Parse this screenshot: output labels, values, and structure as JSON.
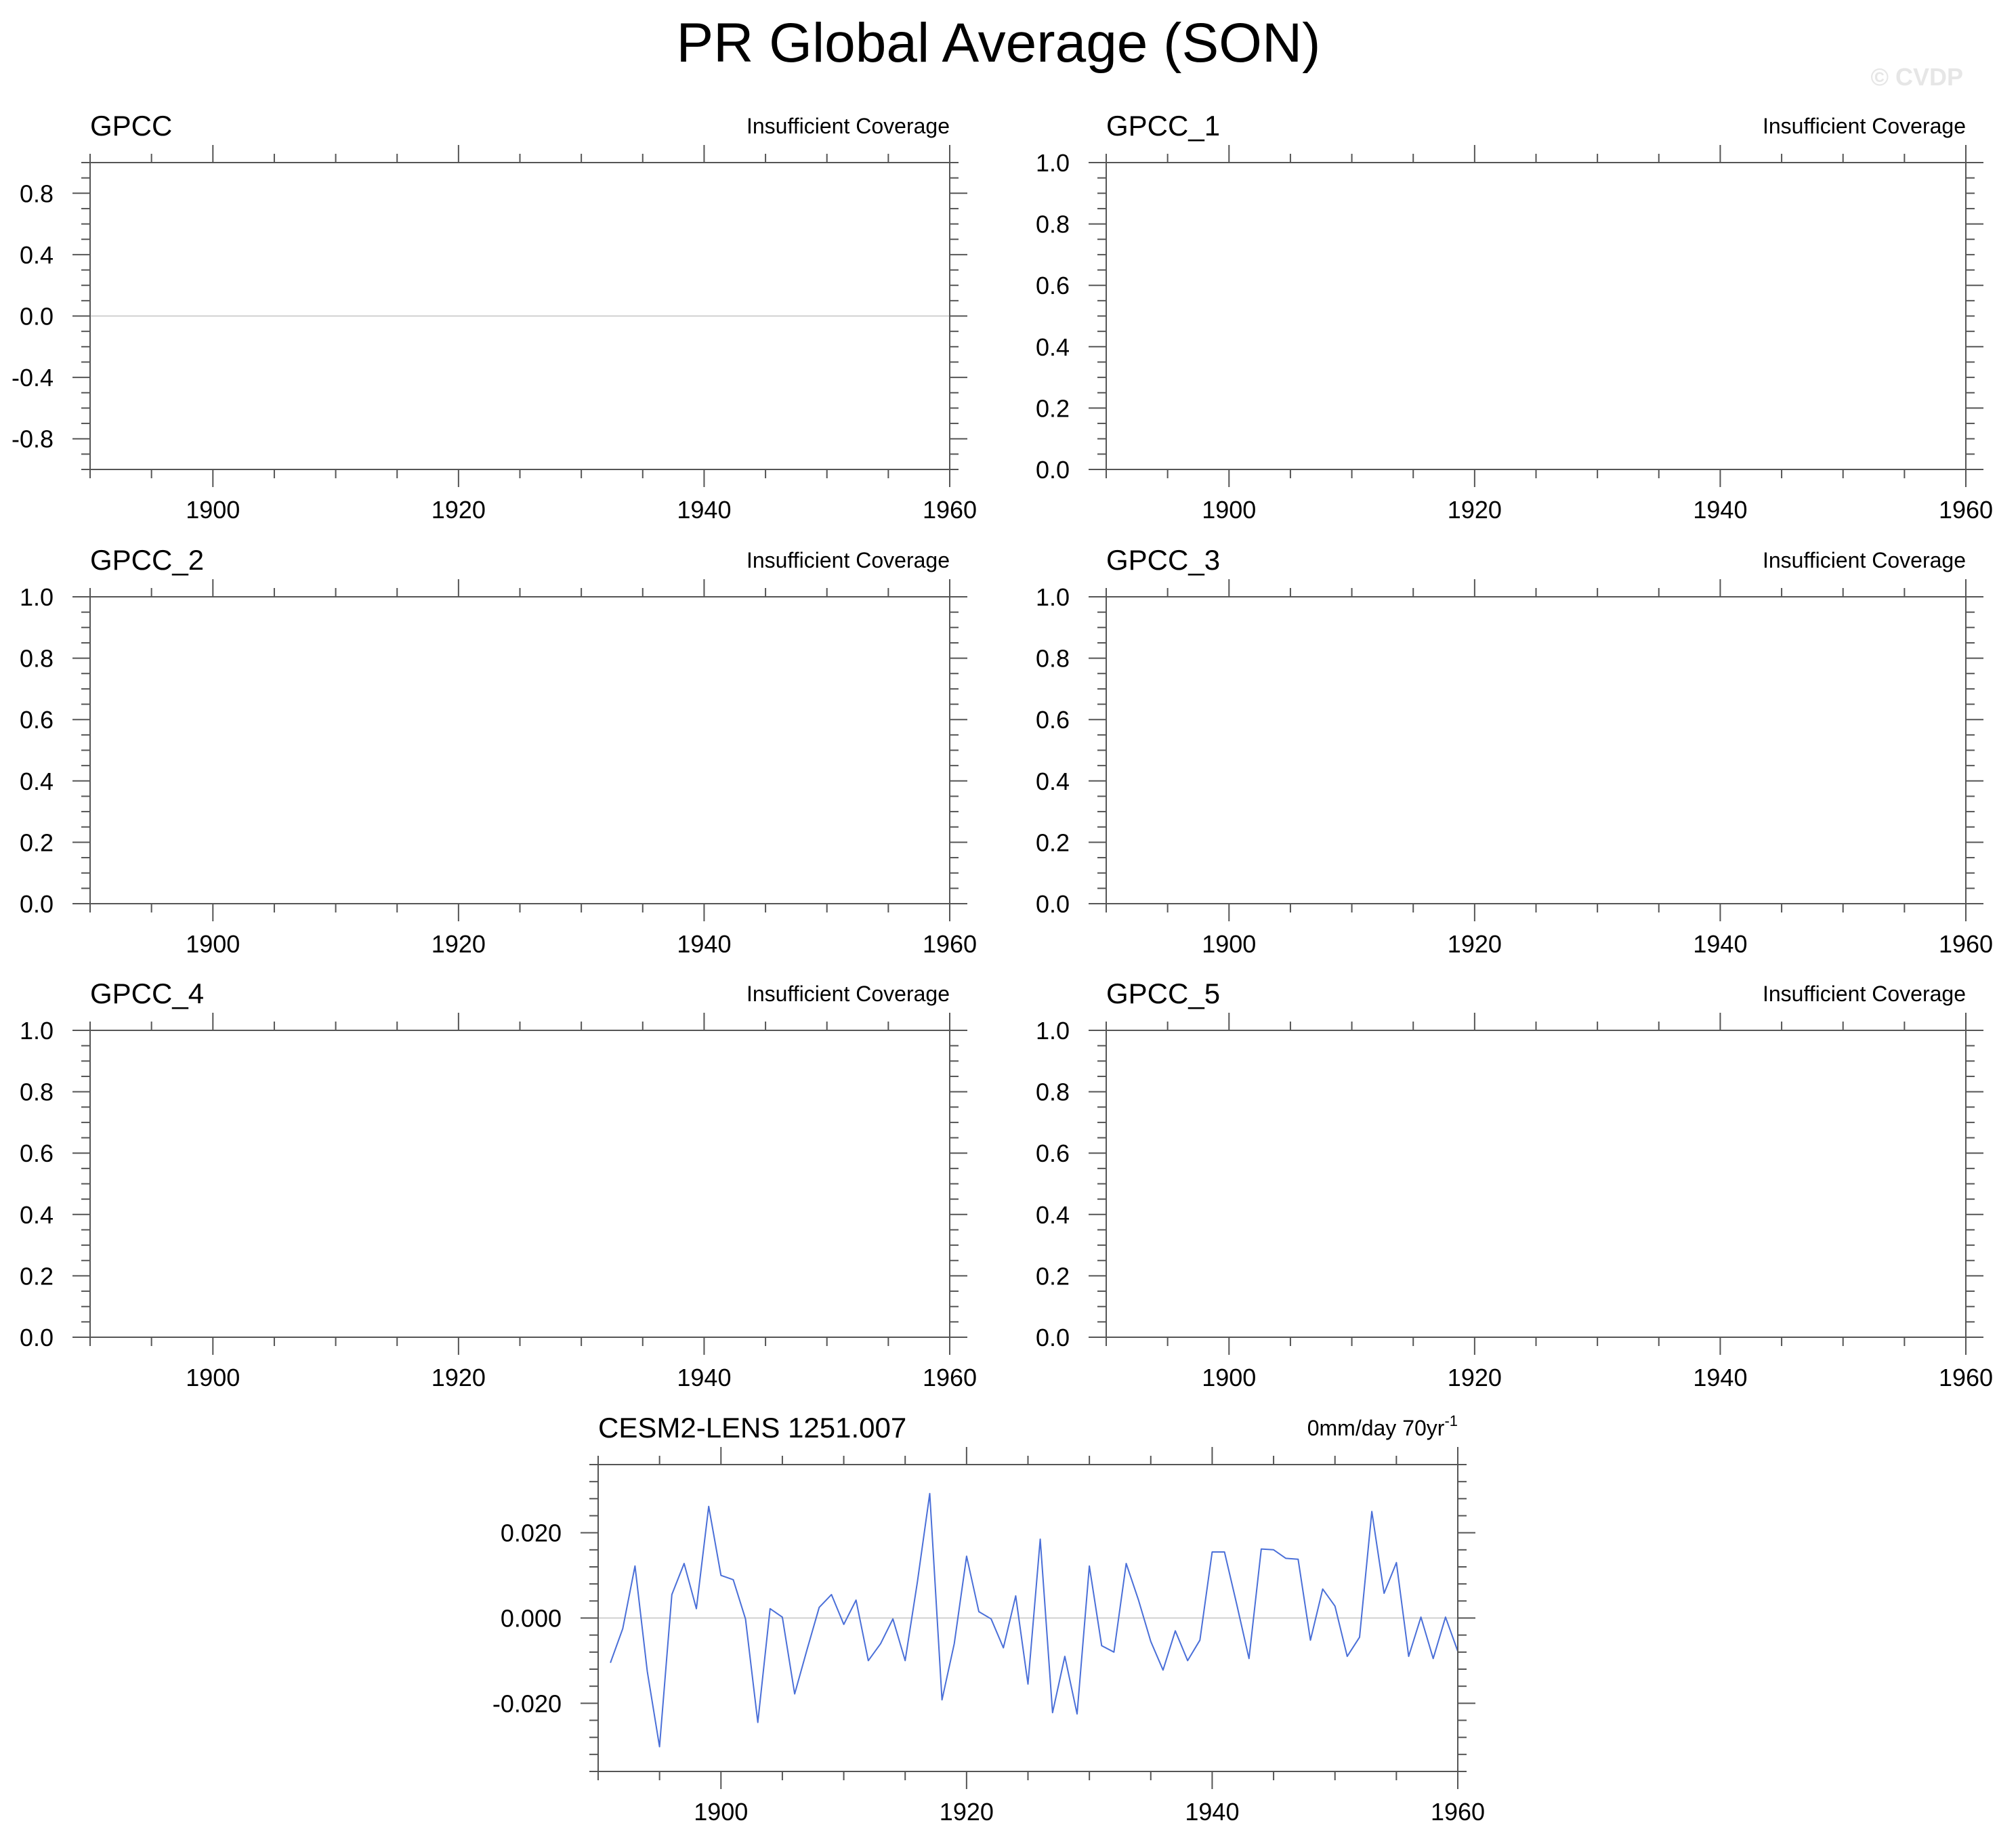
{
  "figure_title": "PR Global Average (SON)",
  "watermark": "© CVDP",
  "chart_data": [
    {
      "type": "line",
      "title": "GPCC",
      "note": "Insufficient Coverage",
      "xlim": [
        1890,
        1960
      ],
      "xticks": [
        1900,
        1920,
        1940,
        1960
      ],
      "ylim": [
        -1.0,
        1.0
      ],
      "yticks": [
        -0.8,
        -0.4,
        0.0,
        0.4,
        0.8
      ],
      "ytick_labels": [
        "-0.8",
        "-0.4",
        "0.0",
        "0.4",
        "0.8"
      ],
      "minor_step": 0.1,
      "reference_line": 0.0,
      "series": []
    },
    {
      "type": "line",
      "title": "GPCC_1",
      "note": "Insufficient Coverage",
      "xlim": [
        1890,
        1960
      ],
      "xticks": [
        1900,
        1920,
        1940,
        1960
      ],
      "ylim": [
        0.0,
        1.0
      ],
      "yticks": [
        0.0,
        0.2,
        0.4,
        0.6,
        0.8,
        1.0
      ],
      "ytick_labels": [
        "0.0",
        "0.2",
        "0.4",
        "0.6",
        "0.8",
        "1.0"
      ],
      "minor_step": 0.05,
      "series": []
    },
    {
      "type": "line",
      "title": "GPCC_2",
      "note": "Insufficient Coverage",
      "xlim": [
        1890,
        1960
      ],
      "xticks": [
        1900,
        1920,
        1940,
        1960
      ],
      "ylim": [
        0.0,
        1.0
      ],
      "yticks": [
        0.0,
        0.2,
        0.4,
        0.6,
        0.8,
        1.0
      ],
      "ytick_labels": [
        "0.0",
        "0.2",
        "0.4",
        "0.6",
        "0.8",
        "1.0"
      ],
      "minor_step": 0.05,
      "series": []
    },
    {
      "type": "line",
      "title": "GPCC_3",
      "note": "Insufficient Coverage",
      "xlim": [
        1890,
        1960
      ],
      "xticks": [
        1900,
        1920,
        1940,
        1960
      ],
      "ylim": [
        0.0,
        1.0
      ],
      "yticks": [
        0.0,
        0.2,
        0.4,
        0.6,
        0.8,
        1.0
      ],
      "ytick_labels": [
        "0.0",
        "0.2",
        "0.4",
        "0.6",
        "0.8",
        "1.0"
      ],
      "minor_step": 0.05,
      "series": []
    },
    {
      "type": "line",
      "title": "GPCC_4",
      "note": "Insufficient Coverage",
      "xlim": [
        1890,
        1960
      ],
      "xticks": [
        1900,
        1920,
        1940,
        1960
      ],
      "ylim": [
        0.0,
        1.0
      ],
      "yticks": [
        0.0,
        0.2,
        0.4,
        0.6,
        0.8,
        1.0
      ],
      "ytick_labels": [
        "0.0",
        "0.2",
        "0.4",
        "0.6",
        "0.8",
        "1.0"
      ],
      "minor_step": 0.05,
      "series": []
    },
    {
      "type": "line",
      "title": "GPCC_5",
      "note": "Insufficient Coverage",
      "xlim": [
        1890,
        1960
      ],
      "xticks": [
        1900,
        1920,
        1940,
        1960
      ],
      "ylim": [
        0.0,
        1.0
      ],
      "yticks": [
        0.0,
        0.2,
        0.4,
        0.6,
        0.8,
        1.0
      ],
      "ytick_labels": [
        "0.0",
        "0.2",
        "0.4",
        "0.6",
        "0.8",
        "1.0"
      ],
      "minor_step": 0.05,
      "series": []
    },
    {
      "type": "line",
      "title": "CESM2-LENS 1251.007",
      "note": "0mm/day 70yr",
      "note_superscript": "-1",
      "xlim": [
        1890,
        1960
      ],
      "xticks": [
        1900,
        1920,
        1940,
        1960
      ],
      "ylim": [
        -0.036,
        0.036
      ],
      "yticks": [
        -0.02,
        0.0,
        0.02
      ],
      "ytick_labels": [
        "-0.020",
        "0.000",
        "0.020"
      ],
      "minor_step": 0.004,
      "reference_line": 0.0,
      "series": [
        {
          "color": "#4a6fd8",
          "x": [
            1891,
            1892,
            1893,
            1894,
            1895,
            1896,
            1897,
            1898,
            1899,
            1900,
            1901,
            1902,
            1903,
            1904,
            1905,
            1906,
            1907,
            1908,
            1909,
            1910,
            1911,
            1912,
            1913,
            1914,
            1915,
            1916,
            1917,
            1918,
            1919,
            1920,
            1921,
            1922,
            1923,
            1924,
            1925,
            1926,
            1927,
            1928,
            1929,
            1930,
            1931,
            1932,
            1933,
            1934,
            1935,
            1936,
            1937,
            1938,
            1939,
            1940,
            1941,
            1942,
            1943,
            1944,
            1945,
            1946,
            1947,
            1948,
            1949,
            1950,
            1951,
            1952,
            1953,
            1954,
            1955,
            1956,
            1957,
            1958,
            1959,
            1960
          ],
          "values": [
            -0.0105,
            -0.0025,
            0.0122,
            -0.0125,
            -0.0302,
            0.0055,
            0.0128,
            0.0022,
            0.0262,
            0.01,
            0.009,
            -0.0002,
            -0.0245,
            0.0022,
            0.0002,
            -0.0178,
            -0.0075,
            0.0025,
            0.0055,
            -0.0015,
            0.0042,
            -0.01,
            -0.006,
            -0.0002,
            -0.01,
            0.0085,
            0.0292,
            -0.0192,
            -0.006,
            0.0145,
            0.0015,
            -0.0002,
            -0.007,
            0.0052,
            -0.0155,
            0.0185,
            -0.0222,
            -0.009,
            -0.0225,
            0.0122,
            -0.0065,
            -0.008,
            0.0128,
            0.0042,
            -0.0055,
            -0.0122,
            -0.003,
            -0.01,
            -0.0052,
            0.0155,
            0.0155,
            0.0032,
            -0.0095,
            0.0162,
            0.016,
            0.014,
            0.0138,
            -0.0052,
            0.0068,
            0.0028,
            -0.009,
            -0.0045,
            0.025,
            0.0058,
            0.013,
            -0.009,
            0.0002,
            -0.0095,
            0.0002,
            -0.0078
          ]
        }
      ]
    }
  ]
}
